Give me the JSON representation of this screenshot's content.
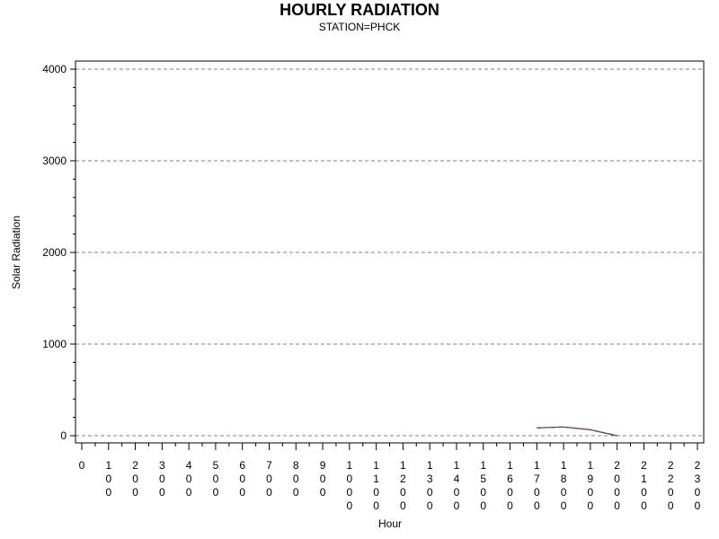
{
  "chart_data": {
    "type": "line",
    "title": "HOURLY RADIATION",
    "subtitle": "STATION=PHCK",
    "xlabel": "Hour",
    "ylabel": "Solar Radiation",
    "xlim": [
      0,
      2300
    ],
    "ylim": [
      0,
      4000
    ],
    "x_ticks": [
      0,
      100,
      200,
      300,
      400,
      500,
      600,
      700,
      800,
      900,
      1000,
      1100,
      1200,
      1300,
      1400,
      1500,
      1600,
      1700,
      1800,
      1900,
      2000,
      2100,
      2200,
      2300
    ],
    "x_tick_labels": [
      "0",
      "100",
      "200",
      "300",
      "400",
      "500",
      "600",
      "700",
      "800",
      "900",
      "1000",
      "1100",
      "1200",
      "1300",
      "1400",
      "1500",
      "1600",
      "1700",
      "1800",
      "1900",
      "2000",
      "2100",
      "2200",
      "2300"
    ],
    "y_ticks": [
      0,
      1000,
      2000,
      3000,
      4000
    ],
    "y_tick_labels": [
      "0",
      "1000",
      "2000",
      "3000",
      "4000"
    ],
    "grid": "horizontal dashed",
    "series": [
      {
        "color": "#2e6b5e",
        "dash": "solid",
        "x": [
          1700,
          1800,
          1900,
          2000
        ],
        "y": [
          85,
          95,
          65,
          0
        ]
      },
      {
        "color": "#c0223b",
        "dash": "dashed",
        "x": [
          1700,
          1800,
          1900,
          2000
        ],
        "y": [
          85,
          95,
          65,
          0
        ]
      },
      {
        "color": "#3a3aa8",
        "dash": "dotted",
        "x": [
          1700,
          1800,
          1900,
          2000
        ],
        "y": [
          85,
          95,
          65,
          0
        ]
      }
    ],
    "colors": {
      "gridline": "#808080",
      "frame": "#000000"
    }
  }
}
